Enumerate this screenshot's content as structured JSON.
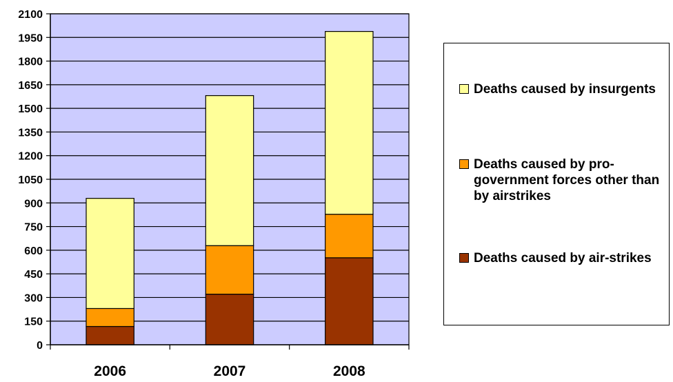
{
  "chart_data": {
    "type": "bar",
    "stacked": true,
    "categories": [
      "2006",
      "2007",
      "2008"
    ],
    "series": [
      {
        "name": "Deaths caused by air-strikes",
        "color": "#993300",
        "values": [
          116,
          321,
          552
        ]
      },
      {
        "name": "Deaths caused by pro-government forces other than by airstrikes",
        "color": "#ff9900",
        "values": [
          114,
          308,
          276
        ]
      },
      {
        "name": "Deaths caused by insurgents",
        "color": "#ffff99",
        "values": [
          699,
          952,
          1160
        ]
      }
    ],
    "legend_order": [
      2,
      1,
      0
    ],
    "legend_position": "right",
    "ylim": [
      0,
      2100
    ],
    "yticks": [
      0,
      150,
      300,
      450,
      600,
      750,
      900,
      1050,
      1200,
      1350,
      1500,
      1650,
      1800,
      1950,
      2100
    ],
    "plot_background": "#ccccff",
    "grid": true,
    "title": "",
    "xlabel": "",
    "ylabel": ""
  }
}
